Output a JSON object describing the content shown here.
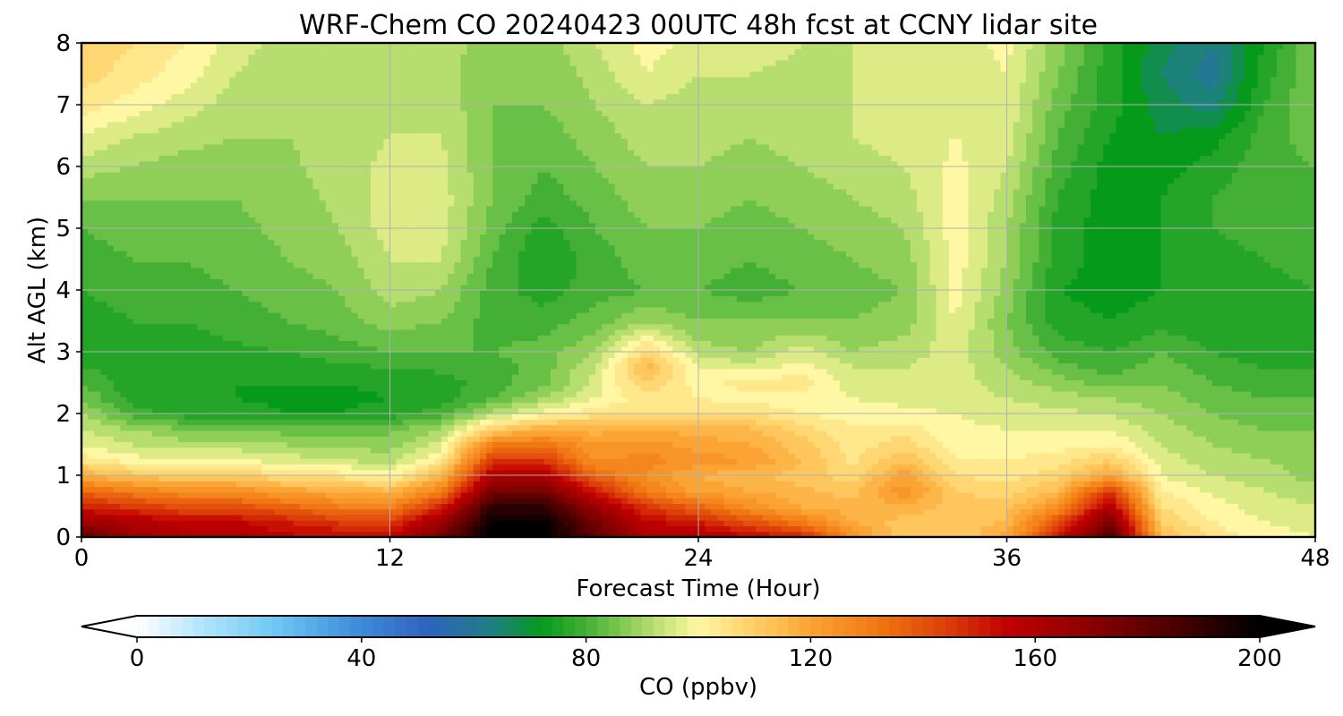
{
  "chart_data": {
    "type": "heatmap",
    "title": "WRF-Chem CO  20240423 00UTC 48h fcst at CCNY lidar site",
    "xlabel": "Forecast Time (Hour)",
    "ylabel": "Alt AGL (km)",
    "xlim": [
      0,
      48
    ],
    "ylim": [
      0,
      8
    ],
    "x_ticks": [
      0,
      12,
      24,
      36,
      48
    ],
    "y_ticks": [
      0,
      1,
      2,
      3,
      4,
      5,
      6,
      7,
      8
    ],
    "grid": true,
    "colorbar": {
      "label": "CO  (ppbv)",
      "range": [
        0,
        200
      ],
      "ticks": [
        0,
        40,
        80,
        120,
        160,
        200
      ],
      "extend": "both",
      "colors": [
        {
          "v": 0,
          "c": "#ffffff"
        },
        {
          "v": 12,
          "c": "#aee4fb"
        },
        {
          "v": 25,
          "c": "#6cc6f3"
        },
        {
          "v": 40,
          "c": "#3c8ad8"
        },
        {
          "v": 52,
          "c": "#2e62be"
        },
        {
          "v": 63,
          "c": "#1f7f86"
        },
        {
          "v": 72,
          "c": "#069a1b"
        },
        {
          "v": 80,
          "c": "#43b035"
        },
        {
          "v": 88,
          "c": "#8fcf58"
        },
        {
          "v": 96,
          "c": "#dceb86"
        },
        {
          "v": 100,
          "c": "#fff7a3"
        },
        {
          "v": 110,
          "c": "#ffcf66"
        },
        {
          "v": 120,
          "c": "#fba434"
        },
        {
          "v": 132,
          "c": "#f17712"
        },
        {
          "v": 145,
          "c": "#db3a08"
        },
        {
          "v": 155,
          "c": "#c00000"
        },
        {
          "v": 170,
          "c": "#8a0000"
        },
        {
          "v": 185,
          "c": "#4a0000"
        },
        {
          "v": 200,
          "c": "#000000"
        }
      ]
    },
    "hours": [
      0,
      2,
      4,
      6,
      8,
      10,
      12,
      14,
      16,
      18,
      20,
      22,
      24,
      26,
      28,
      30,
      32,
      34,
      36,
      38,
      40,
      42,
      44,
      46,
      48
    ],
    "altitudes_km": [
      0,
      0.25,
      0.5,
      0.75,
      1,
      1.25,
      1.5,
      1.75,
      2,
      2.25,
      2.5,
      2.75,
      3,
      3.5,
      4,
      4.5,
      5,
      5.5,
      6,
      6.5,
      7,
      7.5,
      8
    ],
    "co_ppbv": [
      [
        180,
        165,
        160,
        160,
        155,
        155,
        155,
        175,
        200,
        200,
        180,
        160,
        160,
        155,
        150,
        125,
        110,
        110,
        120,
        150,
        185,
        115,
        105,
        100,
        98
      ],
      [
        165,
        160,
        155,
        155,
        150,
        145,
        145,
        165,
        200,
        200,
        175,
        155,
        150,
        140,
        130,
        118,
        112,
        110,
        115,
        140,
        175,
        110,
        102,
        98,
        96
      ],
      [
        150,
        145,
        140,
        140,
        135,
        130,
        128,
        148,
        190,
        190,
        165,
        145,
        135,
        125,
        118,
        115,
        118,
        112,
        112,
        125,
        160,
        106,
        100,
        96,
        94
      ],
      [
        135,
        130,
        125,
        125,
        120,
        118,
        115,
        130,
        175,
        175,
        150,
        130,
        120,
        118,
        115,
        112,
        125,
        110,
        108,
        115,
        145,
        102,
        97,
        94,
        92
      ],
      [
        118,
        112,
        110,
        110,
        106,
        104,
        100,
        115,
        160,
        160,
        135,
        125,
        118,
        115,
        112,
        108,
        120,
        106,
        104,
        108,
        120,
        98,
        94,
        92,
        88
      ],
      [
        104,
        100,
        98,
        98,
        96,
        94,
        92,
        103,
        145,
        145,
        125,
        128,
        124,
        122,
        114,
        105,
        114,
        102,
        102,
        104,
        110,
        96,
        92,
        90,
        88
      ],
      [
        98,
        94,
        92,
        92,
        90,
        89,
        88,
        96,
        130,
        132,
        122,
        124,
        120,
        118,
        112,
        104,
        108,
        100,
        100,
        100,
        102,
        94,
        90,
        88,
        88
      ],
      [
        94,
        90,
        86,
        86,
        84,
        84,
        85,
        90,
        110,
        118,
        116,
        118,
        116,
        115,
        108,
        103,
        104,
        99,
        98,
        98,
        98,
        92,
        88,
        86,
        86
      ],
      [
        90,
        80,
        76,
        76,
        74,
        74,
        76,
        80,
        92,
        100,
        104,
        106,
        106,
        106,
        102,
        100,
        99,
        98,
        96,
        95,
        94,
        90,
        86,
        84,
        84
      ],
      [
        86,
        76,
        74,
        74,
        73,
        73,
        74,
        76,
        82,
        90,
        98,
        104,
        102,
        100,
        100,
        98,
        97,
        96,
        94,
        92,
        90,
        88,
        84,
        82,
        82
      ],
      [
        82,
        75,
        74,
        74,
        74,
        74,
        75,
        76,
        80,
        85,
        96,
        110,
        100,
        104,
        104,
        96,
        95,
        96,
        92,
        88,
        84,
        86,
        82,
        80,
        80
      ],
      [
        78,
        76,
        75,
        75,
        76,
        77,
        78,
        79,
        80,
        84,
        94,
        116,
        98,
        96,
        100,
        94,
        94,
        96,
        90,
        84,
        80,
        84,
        80,
        78,
        78
      ],
      [
        76,
        76,
        76,
        77,
        78,
        80,
        82,
        82,
        82,
        84,
        90,
        108,
        92,
        90,
        96,
        90,
        92,
        96,
        88,
        80,
        78,
        82,
        78,
        76,
        76
      ],
      [
        76,
        78,
        78,
        80,
        82,
        84,
        88,
        86,
        80,
        80,
        84,
        90,
        86,
        86,
        86,
        86,
        88,
        98,
        86,
        76,
        74,
        76,
        75,
        76,
        78
      ],
      [
        78,
        80,
        80,
        82,
        84,
        86,
        92,
        90,
        80,
        76,
        80,
        82,
        82,
        80,
        82,
        84,
        86,
        100,
        88,
        74,
        72,
        74,
        74,
        76,
        78
      ],
      [
        80,
        82,
        82,
        84,
        86,
        88,
        94,
        94,
        82,
        74,
        80,
        84,
        84,
        82,
        84,
        86,
        88,
        100,
        90,
        76,
        72,
        74,
        76,
        78,
        80
      ],
      [
        82,
        84,
        84,
        85,
        87,
        90,
        96,
        96,
        84,
        76,
        82,
        86,
        86,
        84,
        86,
        88,
        90,
        100,
        90,
        76,
        72,
        74,
        78,
        80,
        82
      ],
      [
        86,
        86,
        86,
        86,
        88,
        91,
        96,
        96,
        86,
        80,
        84,
        88,
        88,
        86,
        88,
        90,
        92,
        100,
        92,
        78,
        72,
        74,
        78,
        80,
        82
      ],
      [
        92,
        90,
        88,
        88,
        89,
        92,
        95,
        95,
        86,
        82,
        86,
        90,
        90,
        88,
        90,
        92,
        94,
        99,
        94,
        80,
        72,
        72,
        76,
        80,
        82
      ],
      [
        98,
        94,
        92,
        90,
        90,
        92,
        94,
        94,
        86,
        84,
        88,
        92,
        92,
        90,
        92,
        94,
        96,
        98,
        96,
        82,
        74,
        70,
        72,
        80,
        84
      ],
      [
        104,
        100,
        96,
        92,
        90,
        92,
        92,
        93,
        86,
        86,
        90,
        94,
        92,
        92,
        92,
        94,
        96,
        97,
        97,
        84,
        76,
        68,
        64,
        78,
        86
      ],
      [
        108,
        104,
        100,
        94,
        91,
        92,
        91,
        92,
        86,
        86,
        92,
        98,
        94,
        94,
        93,
        94,
        96,
        96,
        98,
        86,
        76,
        66,
        60,
        76,
        86
      ],
      [
        110,
        106,
        102,
        96,
        92,
        92,
        90,
        92,
        88,
        88,
        94,
        100,
        96,
        96,
        94,
        94,
        96,
        96,
        99,
        88,
        76,
        68,
        62,
        74,
        86
      ]
    ]
  }
}
